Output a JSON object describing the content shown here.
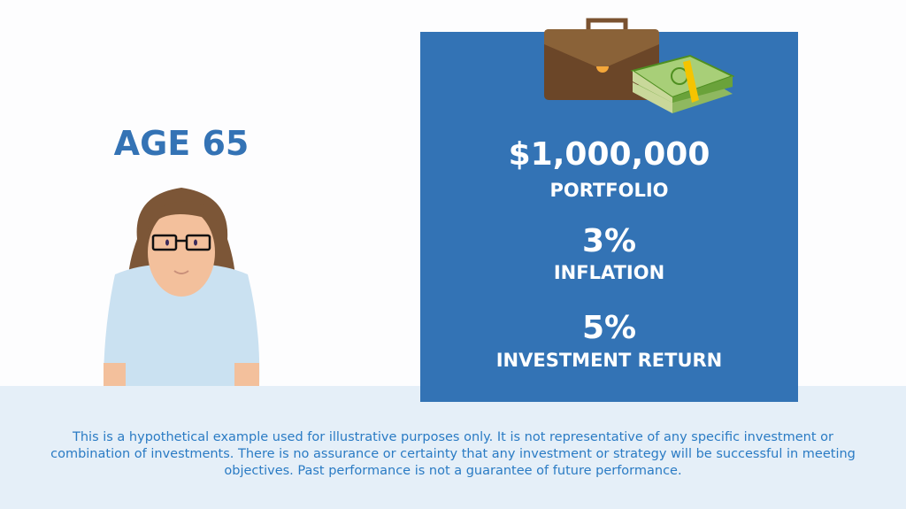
{
  "age_title": "AGE 65",
  "panel": {
    "portfolio_value": "$1,000,000",
    "portfolio_label": "PORTFOLIO",
    "inflation_value": "3%",
    "inflation_label": "INFLATION",
    "return_value": "5%",
    "return_label": "INVESTMENT RETURN"
  },
  "disclaimer": "This is a hypothetical example used for illustrative purposes only. It is not representative of any specific investment or combination of investments. There is no assurance or certainty that any investment or strategy will be successful in meeting objectives. Past performance is not a guarantee of future performance.",
  "colors": {
    "panel": "#3373b5",
    "accent_text": "#3473b5",
    "band": "#e5eff8"
  }
}
